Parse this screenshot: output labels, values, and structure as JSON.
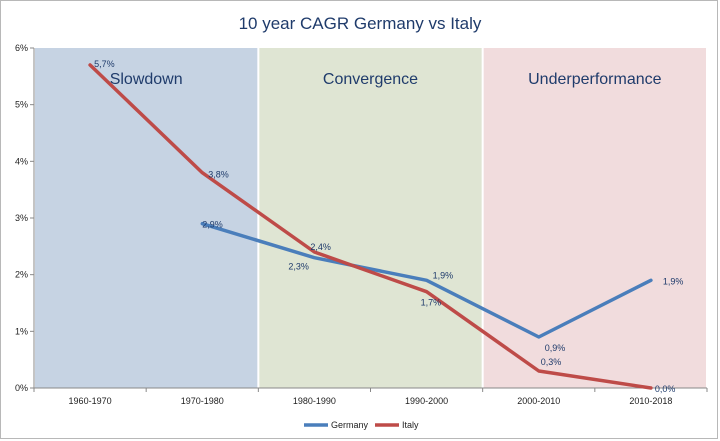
{
  "chart_data": {
    "type": "line",
    "title": "10 year CAGR Germany vs Italy",
    "xlabel": "",
    "ylabel": "",
    "categories": [
      "1960-1970",
      "1970-1980",
      "1980-1990",
      "1990-2000",
      "2000-2010",
      "2010-2018"
    ],
    "ylim": [
      0,
      6
    ],
    "yticks": [
      "0%",
      "1%",
      "2%",
      "3%",
      "4%",
      "5%",
      "6%"
    ],
    "legend_position": "bottom",
    "series": [
      {
        "name": "Germany",
        "color": "#4a7ebb",
        "values": [
          null,
          2.9,
          2.3,
          1.9,
          0.9,
          1.9
        ],
        "labels": [
          null,
          "2,9%",
          "2,3%",
          "1,9%",
          "0,9%",
          "1,9%"
        ]
      },
      {
        "name": "Italy",
        "color": "#be4b48",
        "values": [
          5.7,
          3.8,
          2.4,
          1.7,
          0.3,
          0.0
        ],
        "labels": [
          "5,7%",
          "3,8%",
          "2,4%",
          "1,7%",
          "0,3%",
          "0,0%"
        ]
      }
    ],
    "regions": [
      {
        "label": "Slowdown",
        "color": "#c6d3e3"
      },
      {
        "label": "Convergence",
        "color": "#dfe5d3"
      },
      {
        "label": "Underperformance",
        "color": "#f1dcdd"
      }
    ]
  }
}
